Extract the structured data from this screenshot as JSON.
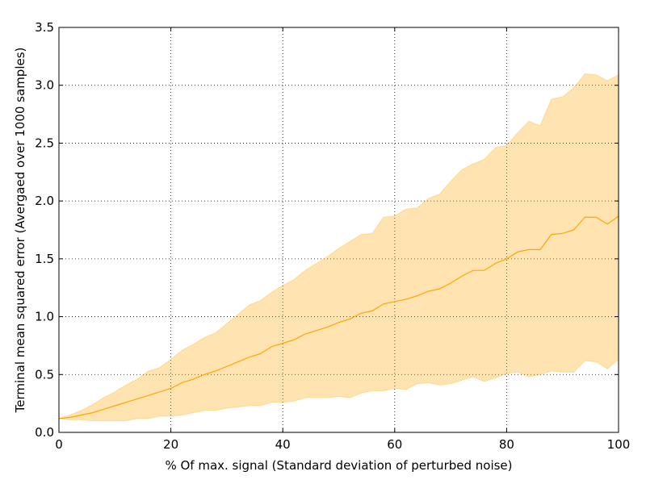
{
  "chart_data": {
    "type": "area",
    "title": "",
    "xlabel": "% Of max. signal (Standard deviation of perturbed noise)",
    "ylabel": "Terminal mean squared error (Avergaed over 1000 samples)",
    "xlim": [
      0,
      100
    ],
    "ylim": [
      0,
      3.5
    ],
    "xticks": [
      0,
      20,
      40,
      60,
      80,
      100
    ],
    "xtick_labels": [
      "0",
      "20",
      "40",
      "60",
      "80",
      "100"
    ],
    "yticks": [
      0.0,
      0.5,
      1.0,
      1.5,
      2.0,
      2.5,
      3.0,
      3.5
    ],
    "ytick_labels": [
      "0.0",
      "0.5",
      "1.0",
      "1.5",
      "2.0",
      "2.5",
      "3.0",
      "3.5"
    ],
    "grid": true,
    "colors": {
      "line": "#ffa500",
      "band": "#ffa500",
      "band_opacity": 0.3
    },
    "x": [
      0,
      2,
      4,
      6,
      8,
      10,
      12,
      14,
      16,
      18,
      20,
      22,
      24,
      26,
      28,
      30,
      32,
      34,
      36,
      38,
      40,
      42,
      44,
      46,
      48,
      50,
      52,
      54,
      56,
      58,
      60,
      62,
      64,
      66,
      68,
      70,
      72,
      74,
      76,
      78,
      80,
      82,
      84,
      86,
      88,
      90,
      92,
      94,
      96,
      98,
      100
    ],
    "series": [
      {
        "role": "mean",
        "values": [
          0.12,
          0.13,
          0.15,
          0.17,
          0.2,
          0.23,
          0.26,
          0.29,
          0.32,
          0.35,
          0.38,
          0.43,
          0.46,
          0.5,
          0.53,
          0.57,
          0.61,
          0.65,
          0.68,
          0.74,
          0.77,
          0.8,
          0.85,
          0.88,
          0.91,
          0.95,
          0.98,
          1.03,
          1.05,
          1.11,
          1.13,
          1.15,
          1.18,
          1.22,
          1.24,
          1.29,
          1.35,
          1.4,
          1.4,
          1.46,
          1.5,
          1.56,
          1.58,
          1.58,
          1.71,
          1.72,
          1.75,
          1.86,
          1.86,
          1.8,
          1.87
        ]
      },
      {
        "role": "upper",
        "values": [
          0.12,
          0.15,
          0.19,
          0.24,
          0.3,
          0.35,
          0.41,
          0.46,
          0.53,
          0.56,
          0.63,
          0.71,
          0.76,
          0.82,
          0.86,
          0.94,
          1.02,
          1.1,
          1.14,
          1.21,
          1.27,
          1.32,
          1.4,
          1.46,
          1.52,
          1.59,
          1.65,
          1.71,
          1.72,
          1.86,
          1.87,
          1.93,
          1.94,
          2.02,
          2.06,
          2.17,
          2.27,
          2.32,
          2.36,
          2.46,
          2.48,
          2.59,
          2.69,
          2.65,
          2.88,
          2.9,
          2.98,
          3.1,
          3.09,
          3.04,
          3.09
        ]
      },
      {
        "role": "lower",
        "values": [
          0.12,
          0.11,
          0.11,
          0.1,
          0.1,
          0.1,
          0.1,
          0.12,
          0.12,
          0.14,
          0.14,
          0.15,
          0.17,
          0.19,
          0.19,
          0.21,
          0.22,
          0.23,
          0.23,
          0.26,
          0.26,
          0.27,
          0.3,
          0.3,
          0.3,
          0.31,
          0.3,
          0.34,
          0.36,
          0.36,
          0.38,
          0.37,
          0.42,
          0.43,
          0.41,
          0.42,
          0.45,
          0.48,
          0.44,
          0.47,
          0.51,
          0.52,
          0.48,
          0.5,
          0.53,
          0.52,
          0.52,
          0.62,
          0.61,
          0.55,
          0.63
        ]
      }
    ]
  }
}
